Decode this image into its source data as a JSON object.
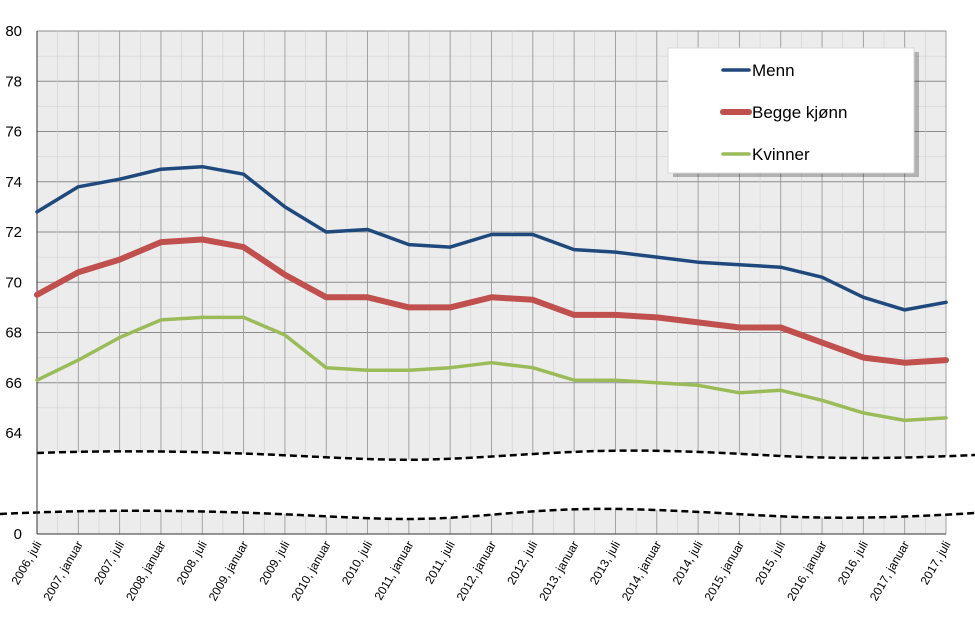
{
  "chart_data": {
    "type": "line",
    "title": "",
    "xlabel": "",
    "ylabel": "",
    "ylim": [
      64,
      80
    ],
    "y_ticks": [
      "0",
      "64",
      "66",
      "68",
      "70",
      "72",
      "74",
      "76",
      "78",
      "80"
    ],
    "axis_break": true,
    "grid": true,
    "legend_position": "top-right",
    "categories": [
      "2006, juli",
      "2007, januar",
      "2007, juli",
      "2008, januar",
      "2008, juli",
      "2009, januar",
      "2009, juli",
      "2010, januar",
      "2010, juli",
      "2011, januar",
      "2011, juli",
      "2012, januar",
      "2012, juli",
      "2013, januar",
      "2013, juli",
      "2014, januar",
      "2014, juli",
      "2015, januar",
      "2015, juli",
      "2016, januar",
      "2016, juli",
      "2017, januar",
      "2017, juli"
    ],
    "series": [
      {
        "name": "Menn",
        "color": "#1f497d",
        "values": [
          72.8,
          73.8,
          74.1,
          74.5,
          74.6,
          74.3,
          73.0,
          72.0,
          72.1,
          71.5,
          71.4,
          71.9,
          71.9,
          71.3,
          71.2,
          71.0,
          70.8,
          70.7,
          70.6,
          70.2,
          69.4,
          68.9,
          69.2
        ]
      },
      {
        "name": "Begge kjønn",
        "color": "#c0504d",
        "values": [
          69.5,
          70.4,
          70.9,
          71.6,
          71.7,
          71.4,
          70.3,
          69.4,
          69.4,
          69.0,
          69.0,
          69.4,
          69.3,
          68.7,
          68.7,
          68.6,
          68.4,
          68.2,
          68.2,
          67.6,
          67.0,
          66.8,
          66.9
        ]
      },
      {
        "name": "Kvinner",
        "color": "#9bbb59",
        "values": [
          66.1,
          66.9,
          67.8,
          68.5,
          68.6,
          68.6,
          67.9,
          66.6,
          66.5,
          66.5,
          66.6,
          66.8,
          66.6,
          66.1,
          66.1,
          66.0,
          65.9,
          65.6,
          65.7,
          65.3,
          64.8,
          64.5,
          64.6
        ]
      }
    ]
  }
}
